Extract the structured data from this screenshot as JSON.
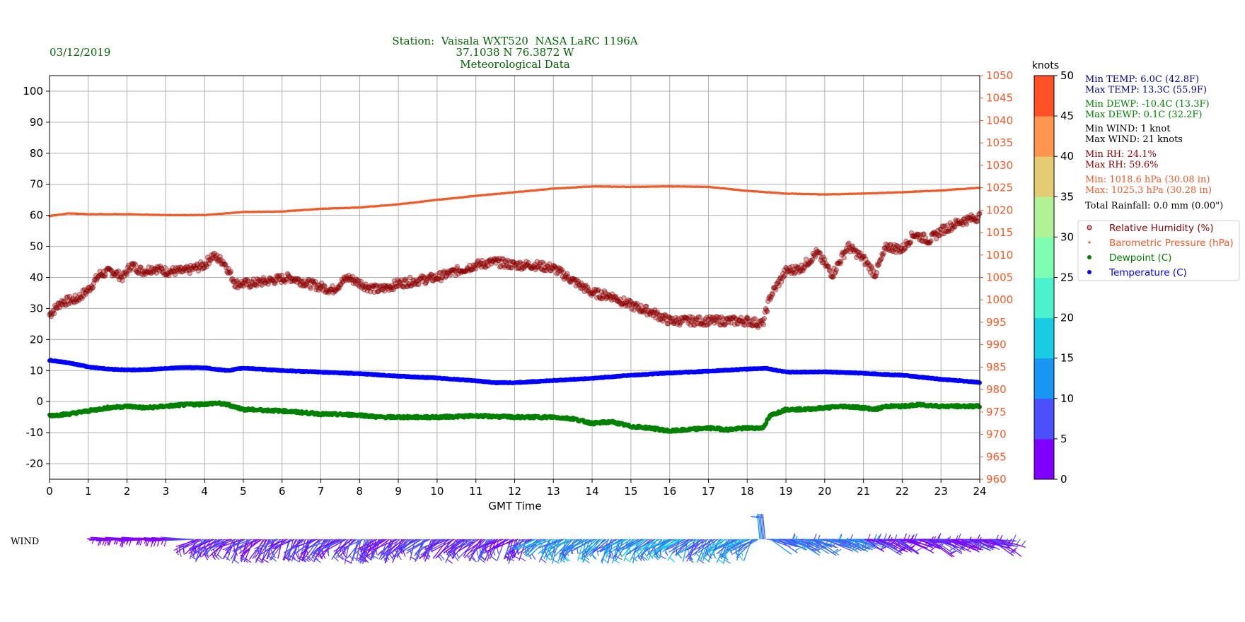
{
  "header": {
    "date": "03/12/2019",
    "station_line1": "Station:  Vaisala WXT520  NASA LaRC 1196A",
    "station_line2": "37.1038 N 76.3872 W",
    "station_line3": "Meteorological Data"
  },
  "colors": {
    "header_green": "#006400",
    "temperature": "#0000ff",
    "dewpoint": "#008000",
    "humidity": "#8b0000",
    "pressure": "#f05a28",
    "stats_temp": "#00008b",
    "stats_dewp": "#008000",
    "stats_wind": "#000000",
    "stats_rh": "#8b0000",
    "stats_pressure": "#f05a28"
  },
  "stats": [
    {
      "text": "Min TEMP: 6.0C (42.8F)",
      "color": "#00008b"
    },
    {
      "text": "Max TEMP: 13.3C (55.9F)",
      "color": "#00008b"
    },
    {
      "text": "Min DEWP: -10.4C (13.3F)",
      "color": "#008000"
    },
    {
      "text": "Max DEWP: 0.1C (32.2F)",
      "color": "#008000"
    },
    {
      "text": "Min WIND: 1 knot",
      "color": "#000000"
    },
    {
      "text": "Max WIND: 21 knots",
      "color": "#000000"
    },
    {
      "text": "Min RH: 24.1%",
      "color": "#8b0000"
    },
    {
      "text": "Max RH: 59.6%",
      "color": "#8b0000"
    },
    {
      "text": "Min: 1018.6 hPa (30.08 in)",
      "color": "#f05a28"
    },
    {
      "text": "Max: 1025.3 hPa (30.28 in)",
      "color": "#f05a28"
    },
    {
      "text": "Total Rainfall: 0.0 mm (0.00\")",
      "color": "#000000"
    }
  ],
  "legend": [
    {
      "label": "Relative Humidity (%)",
      "color": "#8b0000",
      "text_color": "#8b0000"
    },
    {
      "label": "Barometric Pressure (hPa)",
      "color": "#f05a28",
      "text_color": "#f05a28"
    },
    {
      "label": "Dewpoint (C)",
      "color": "#008000",
      "text_color": "#008000"
    },
    {
      "label": "Temperature (C)",
      "color": "#0000ff",
      "text_color": "#0000ff"
    }
  ],
  "colorbar": {
    "label": "knots",
    "ticks": [
      0,
      5,
      10,
      15,
      20,
      25,
      30,
      35,
      40,
      45,
      50
    ],
    "bands": [
      "#7f00ff",
      "#4c50fc",
      "#1996f3",
      "#19cce3",
      "#4cf2ce",
      "#7ffeb3",
      "#b2f296",
      "#e5cc74",
      "#ff9650",
      "#ff5028"
    ]
  },
  "wind": {
    "label": "WIND"
  },
  "chart_data": {
    "type": "scatter",
    "xlabel": "GMT Time",
    "xlim": [
      0,
      24
    ],
    "x_ticks": [
      0,
      1,
      2,
      3,
      4,
      5,
      6,
      7,
      8,
      9,
      10,
      11,
      12,
      13,
      14,
      15,
      16,
      17,
      18,
      19,
      20,
      21,
      22,
      23,
      24
    ],
    "ylim_left": [
      -25,
      105
    ],
    "y_ticks_left": [
      -20,
      -10,
      0,
      10,
      20,
      30,
      40,
      50,
      60,
      70,
      80,
      90,
      100
    ],
    "ylim_right": [
      960,
      1050
    ],
    "y_ticks_right": [
      960,
      965,
      970,
      975,
      980,
      985,
      990,
      995,
      1000,
      1005,
      1010,
      1015,
      1020,
      1025,
      1030,
      1035,
      1040,
      1045,
      1050
    ],
    "grid": true,
    "legend_position": "right",
    "series": [
      {
        "name": "Relative Humidity (%)",
        "axis": "left",
        "x": [
          0,
          0.3,
          0.7,
          1,
          1.3,
          1.6,
          1.9,
          2.1,
          2.4,
          2.7,
          3,
          3.5,
          4,
          4.2,
          4.5,
          4.8,
          5.2,
          5.7,
          6.2,
          6.7,
          7.3,
          7.7,
          8.2,
          8.5,
          9,
          9.5,
          10,
          10.5,
          11,
          11.5,
          12,
          12.5,
          13,
          13.5,
          14,
          14.5,
          15,
          15.5,
          16,
          16.5,
          17,
          17.5,
          18,
          18.4,
          18.6,
          19,
          19.4,
          19.8,
          20.2,
          20.6,
          21,
          21.3,
          21.6,
          22,
          22.3,
          22.7,
          23,
          23.5,
          24
        ],
        "y": [
          28,
          32,
          33,
          36,
          41,
          42,
          40,
          44,
          42,
          43,
          42,
          42,
          44,
          47,
          45,
          38,
          38,
          39,
          40,
          38,
          36,
          40,
          37,
          36,
          38,
          39,
          40,
          42,
          44,
          45,
          44,
          44,
          43,
          39,
          35,
          34,
          31,
          29,
          26,
          26,
          26,
          26,
          26,
          25,
          34,
          42,
          43,
          48,
          41,
          50,
          46,
          41,
          50,
          49,
          54,
          52,
          55,
          58,
          59.6
        ]
      },
      {
        "name": "Barometric Pressure (hPa)",
        "axis": "right",
        "x": [
          0,
          0.5,
          1,
          2,
          3,
          4,
          5,
          6,
          7,
          8,
          9,
          10,
          11,
          12,
          13,
          14,
          15,
          16,
          17,
          18,
          19,
          20,
          21,
          22,
          23,
          24
        ],
        "y": [
          1018.7,
          1019.3,
          1019.1,
          1019.1,
          1018.9,
          1018.9,
          1019.6,
          1019.7,
          1020.3,
          1020.6,
          1021.3,
          1022.3,
          1023.2,
          1024,
          1024.8,
          1025.3,
          1025.2,
          1025.3,
          1025.2,
          1024.3,
          1023.7,
          1023.5,
          1023.7,
          1024,
          1024.4,
          1025
        ]
      },
      {
        "name": "Dewpoint (C)",
        "axis": "left",
        "x": [
          0,
          0.5,
          1,
          1.5,
          2,
          2.5,
          3,
          3.5,
          4,
          4.3,
          4.6,
          5,
          6,
          7,
          8,
          8.5,
          9,
          10,
          11,
          12,
          13,
          13.5,
          14,
          14.5,
          15,
          15.5,
          16,
          16.5,
          17,
          17.5,
          18,
          18.4,
          18.6,
          19,
          19.5,
          20,
          20.5,
          21,
          21.3,
          21.6,
          22,
          22.5,
          23,
          23.5,
          24
        ],
        "y": [
          -4.5,
          -4,
          -3,
          -2,
          -1.5,
          -2,
          -1.5,
          -1,
          -0.8,
          -0.5,
          -1,
          -2.5,
          -3,
          -4,
          -4.3,
          -5,
          -5,
          -5,
          -4.6,
          -5,
          -5,
          -5.5,
          -7,
          -6.5,
          -8,
          -8.5,
          -9.5,
          -9,
          -8.5,
          -9,
          -8.5,
          -8.5,
          -4.5,
          -2.5,
          -2.5,
          -2,
          -1.5,
          -2,
          -2.5,
          -1.5,
          -1.5,
          -1,
          -1.5,
          -1.5,
          -1.5
        ]
      },
      {
        "name": "Temperature (C)",
        "axis": "left",
        "x": [
          0,
          0.5,
          1,
          1.5,
          2,
          2.5,
          3,
          3.5,
          4,
          4.3,
          4.6,
          5,
          6,
          7,
          8,
          9,
          10,
          11,
          11.5,
          12,
          13,
          14,
          15,
          16,
          17,
          18,
          18.5,
          19,
          20,
          21,
          22,
          23,
          24
        ],
        "y": [
          13.3,
          12.5,
          11.2,
          10.5,
          10.2,
          10.3,
          10.7,
          11,
          10.9,
          10.4,
          10,
          10.8,
          10,
          9.5,
          9,
          8.2,
          7.6,
          6.7,
          6.1,
          6.1,
          6.8,
          7.5,
          8.5,
          9.2,
          9.8,
          10.5,
          10.7,
          9.5,
          9.6,
          9.1,
          8.5,
          7.2,
          6.2
        ]
      }
    ]
  }
}
